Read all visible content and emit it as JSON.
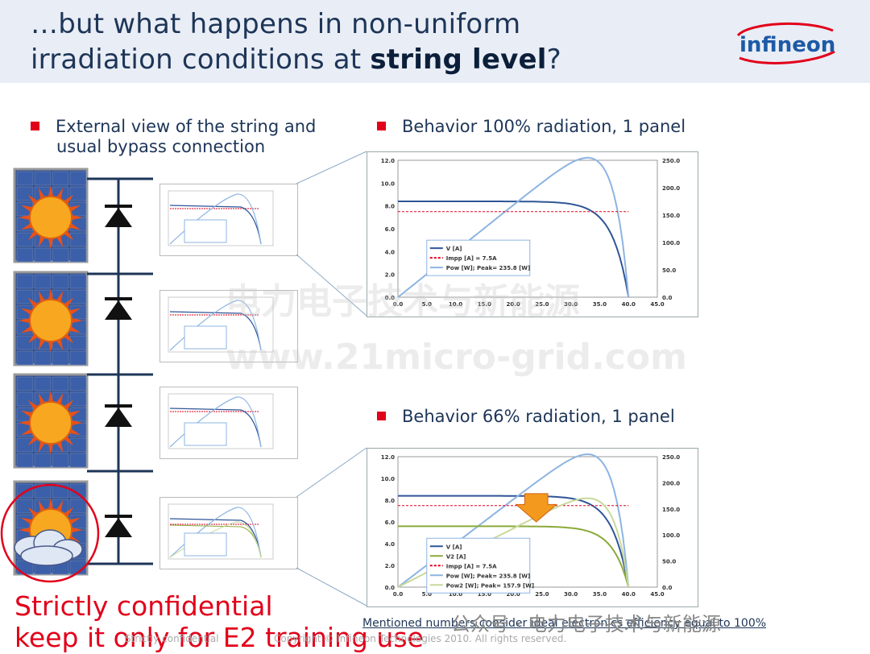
{
  "header": {
    "title_line1": "…but what happens in non-uniform",
    "title_line2_pre": "irradiation conditions at ",
    "title_line2_bold": "string level",
    "title_line2_post": "?",
    "logo_text": "infineon"
  },
  "bullets": {
    "left_1": "External view of the string and",
    "left_2": "usual bypass connection",
    "right_top": "Behavior 100% radiation, 1 panel",
    "right_bottom": "Behavior 66% radiation, 1 panel"
  },
  "chart_data": [
    {
      "type": "line",
      "x": [
        0,
        5,
        10,
        15,
        20,
        25,
        30,
        35,
        40
      ],
      "xticks": [
        "0.0",
        "5.0",
        "10.0",
        "15.0",
        "20.0",
        "25.0",
        "30.0",
        "35.0",
        "40.0",
        "45.0"
      ],
      "yticks_left": [
        "0.0",
        "2.0",
        "4.0",
        "6.0",
        "8.0",
        "10.0",
        "12.0"
      ],
      "yticks_right": [
        "0.0",
        "50.0",
        "100.0",
        "150.0",
        "200.0",
        "250.0"
      ],
      "ylim": [
        0,
        12
      ],
      "ylim_right": [
        0,
        250
      ],
      "xlim": [
        0,
        45
      ],
      "series": [
        {
          "name": "V [A]",
          "color": "#2f5597"
        },
        {
          "name": "Impp [A] = 7.5A",
          "color": "#e2001a"
        },
        {
          "name": "Pow [W]; Peak= 235.8 [W]",
          "color": "#8db4e2"
        }
      ]
    },
    {
      "type": "line",
      "x": [
        0,
        5,
        10,
        15,
        20,
        25,
        30,
        35,
        40
      ],
      "xticks": [
        "0.0",
        "5.0",
        "10.0",
        "15.0",
        "20.0",
        "25.0",
        "30.0",
        "35.0",
        "40.0",
        "45.0"
      ],
      "yticks_left": [
        "0.0",
        "2.0",
        "4.0",
        "6.0",
        "8.0",
        "10.0",
        "12.0"
      ],
      "yticks_right": [
        "0.0",
        "50.0",
        "100.0",
        "150.0",
        "200.0",
        "250.0"
      ],
      "ylim": [
        0,
        12
      ],
      "ylim_right": [
        0,
        250
      ],
      "xlim": [
        0,
        45
      ],
      "series": [
        {
          "name": "V [A]",
          "color": "#2f5597"
        },
        {
          "name": "V2 [A]",
          "color": "#8aaa3a"
        },
        {
          "name": "Impp [A] = 7.5A",
          "color": "#e2001a"
        },
        {
          "name": "Pow [W]; Peak= 235.8 [W]",
          "color": "#8db4e2"
        },
        {
          "name": "Pow2 [W]; Peak= 157.9 [W]",
          "color": "#c8d99a"
        }
      ]
    }
  ],
  "watermarks": {
    "cn": "电力电子技术与新能源",
    "url": "www.21micro-grid.com"
  },
  "confidential": {
    "line1": "Strictly confidential",
    "line2": "keep it only for E2 training use"
  },
  "footer": {
    "left": "Strictly confidential",
    "copyright": "Copyright © Infineon Technologies 2010. All rights reserved."
  },
  "note": "Mentioned numbers consider ideal electronics efficiency equal to 100%",
  "wechat": "公众号 · 电力电子技术与新能源",
  "colors": {
    "accent": "#e2001a",
    "navy": "#1d3557",
    "header_bg": "#e9edf5"
  }
}
